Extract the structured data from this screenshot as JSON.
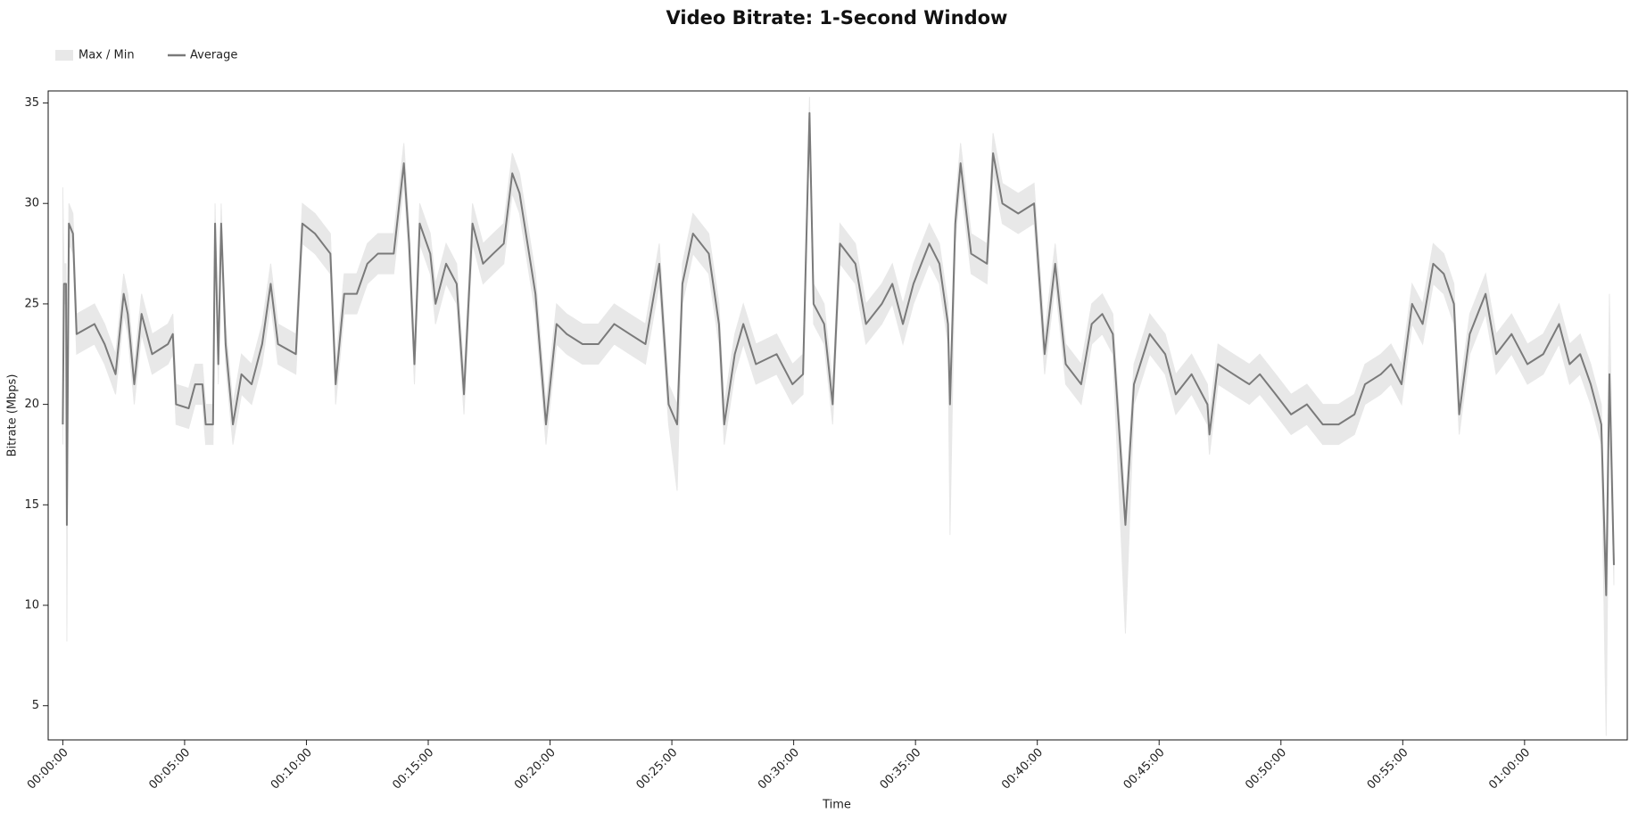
{
  "chart_data": {
    "type": "line",
    "title": "Video Bitrate: 1-Second Window",
    "x_label": "Time",
    "y_label": "Bitrate (Mbps)",
    "xlim": [
      -36,
      3853
    ],
    "ylim": [
      3.3,
      35.6
    ],
    "xticks": [
      {
        "value": 0,
        "label": "00:00:00"
      },
      {
        "value": 300,
        "label": "00:05:00"
      },
      {
        "value": 600,
        "label": "00:10:00"
      },
      {
        "value": 900,
        "label": "00:15:00"
      },
      {
        "value": 1200,
        "label": "00:20:00"
      },
      {
        "value": 1500,
        "label": "00:25:00"
      },
      {
        "value": 1800,
        "label": "00:30:00"
      },
      {
        "value": 2100,
        "label": "00:35:00"
      },
      {
        "value": 2400,
        "label": "00:40:00"
      },
      {
        "value": 2700,
        "label": "00:45:00"
      },
      {
        "value": 3000,
        "label": "00:50:00"
      },
      {
        "value": 3300,
        "label": "00:55:00"
      },
      {
        "value": 3600,
        "label": "01:00:00"
      }
    ],
    "yticks": [
      5,
      10,
      15,
      20,
      25,
      30,
      35
    ],
    "x": [
      0,
      3,
      8,
      10,
      15,
      25,
      34,
      78,
      103,
      130,
      150,
      160,
      176,
      194,
      220,
      259,
      271,
      279,
      310,
      326,
      344,
      352,
      370,
      375,
      383,
      390,
      401,
      419,
      440,
      465,
      491,
      512,
      530,
      574,
      590,
      621,
      659,
      672,
      693,
      724,
      750,
      776,
      815,
      840,
      853,
      866,
      879,
      905,
      918,
      944,
      970,
      988,
      1009,
      1035,
      1060,
      1086,
      1107,
      1125,
      1164,
      1190,
      1216,
      1241,
      1280,
      1319,
      1358,
      1396,
      1435,
      1469,
      1492,
      1513,
      1526,
      1552,
      1591,
      1616,
      1629,
      1655,
      1676,
      1707,
      1758,
      1797,
      1823,
      1839,
      1849,
      1875,
      1896,
      1914,
      1952,
      1978,
      2017,
      2043,
      2069,
      2095,
      2134,
      2159,
      2180,
      2185,
      2198,
      2211,
      2237,
      2276,
      2291,
      2314,
      2353,
      2392,
      2418,
      2444,
      2470,
      2508,
      2534,
      2560,
      2586,
      2617,
      2638,
      2677,
      2715,
      2741,
      2780,
      2819,
      2824,
      2845,
      2883,
      2922,
      2948,
      2987,
      3025,
      3064,
      3103,
      3142,
      3181,
      3207,
      3246,
      3271,
      3297,
      3323,
      3349,
      3375,
      3401,
      3426,
      3439,
      3465,
      3504,
      3530,
      3568,
      3607,
      3646,
      3685,
      3711,
      3737,
      3763,
      3789,
      3801,
      3809,
      3820
    ],
    "series": [
      {
        "name": "Max / Min",
        "color": "#e8e8e8",
        "upper": [
          30.8,
          27,
          27,
          15,
          30,
          29.5,
          24.5,
          25,
          24,
          22.5,
          26.5,
          25.5,
          22,
          25.5,
          23.5,
          24,
          24.5,
          21,
          20.8,
          22,
          22,
          20,
          20,
          30,
          23,
          30,
          24,
          20,
          22.5,
          22,
          24,
          27,
          24,
          23.5,
          30,
          29.5,
          28.5,
          22,
          26.5,
          26.5,
          28,
          28.5,
          28.5,
          33,
          29,
          23,
          30,
          28.5,
          26,
          28,
          27,
          21.5,
          30,
          28,
          28.5,
          29,
          32.5,
          31.5,
          26.5,
          20,
          25,
          24.5,
          24,
          24,
          25,
          24.5,
          24,
          28,
          21,
          20,
          27,
          29.5,
          28.5,
          25,
          20,
          23.5,
          25,
          23,
          23.5,
          22,
          22.5,
          35.3,
          26,
          25,
          21,
          29,
          28,
          25,
          26,
          27,
          25,
          27,
          29,
          28,
          25,
          21,
          30,
          33,
          28.5,
          28,
          33.5,
          31,
          30.5,
          31,
          23.5,
          28,
          23,
          22,
          25,
          25.5,
          24.5,
          15,
          22,
          24.5,
          23.5,
          21.5,
          22.5,
          21,
          19.5,
          23,
          22.5,
          22,
          22.5,
          21.5,
          20.5,
          21,
          20,
          20,
          20.5,
          22,
          22.5,
          23,
          22,
          26,
          25,
          28,
          27.5,
          26,
          20.5,
          24.5,
          26.5,
          23.5,
          24.5,
          23,
          23.5,
          25,
          23,
          23.5,
          22,
          20,
          11.5,
          25.5,
          13
        ],
        "lower": [
          18,
          25,
          25,
          8.2,
          28,
          27.5,
          22.5,
          23,
          22,
          20.5,
          24.5,
          23.5,
          20,
          23.5,
          21.5,
          22,
          22.5,
          19,
          18.8,
          20,
          20,
          18,
          18,
          28,
          21,
          28,
          22,
          18,
          20.5,
          20,
          22,
          25,
          22,
          21.5,
          28,
          27.5,
          26.5,
          20,
          24.5,
          24.5,
          26,
          26.5,
          26.5,
          31,
          27,
          21,
          28,
          26.5,
          24,
          26,
          25,
          19.5,
          28,
          26,
          26.5,
          27,
          30.5,
          29.5,
          24.5,
          18,
          23,
          22.5,
          22,
          22,
          23,
          22.5,
          22,
          26,
          19,
          15.7,
          25,
          27.5,
          26.5,
          23,
          18,
          21.5,
          23,
          21,
          21.5,
          20,
          20.5,
          33.5,
          24,
          23,
          19,
          27,
          26,
          23,
          24,
          25,
          23,
          25,
          27,
          26,
          23,
          13.5,
          28,
          31,
          26.5,
          26,
          31.5,
          29,
          28.5,
          29,
          21.5,
          26,
          21,
          20,
          23,
          23.5,
          22.5,
          8.6,
          20,
          22.5,
          21.5,
          19.5,
          20.5,
          19,
          17.5,
          21,
          20.5,
          20,
          20.5,
          19.5,
          18.5,
          19,
          18,
          18,
          18.5,
          20,
          20.5,
          21,
          20,
          24,
          23,
          26,
          25.5,
          24,
          18.5,
          22.5,
          24.5,
          21.5,
          22.5,
          21,
          21.5,
          23,
          21,
          21.5,
          20,
          18,
          3.5,
          20.5,
          11
        ]
      },
      {
        "name": "Average",
        "color": "#7a7a7a",
        "values": [
          19,
          26,
          26,
          14,
          29,
          28.5,
          23.5,
          24,
          23,
          21.5,
          25.5,
          24.5,
          21,
          24.5,
          22.5,
          23,
          23.5,
          20,
          19.8,
          21,
          21,
          19,
          19,
          29,
          22,
          29,
          23,
          19,
          21.5,
          21,
          23,
          26,
          23,
          22.5,
          29,
          28.5,
          27.5,
          21,
          25.5,
          25.5,
          27,
          27.5,
          27.5,
          32,
          28,
          22,
          29,
          27.5,
          25,
          27,
          26,
          20.5,
          29,
          27,
          27.5,
          28,
          31.5,
          30.5,
          25.5,
          19,
          24,
          23.5,
          23,
          23,
          24,
          23.5,
          23,
          27,
          20,
          19,
          26,
          28.5,
          27.5,
          24,
          19,
          22.5,
          24,
          22,
          22.5,
          21,
          21.5,
          34.5,
          25,
          24,
          20,
          28,
          27,
          24,
          25,
          26,
          24,
          26,
          28,
          27,
          24,
          20,
          29,
          32,
          27.5,
          27,
          32.5,
          30,
          29.5,
          30,
          22.5,
          27,
          22,
          21,
          24,
          24.5,
          23.5,
          14,
          21,
          23.5,
          22.5,
          20.5,
          21.5,
          20,
          18.5,
          22,
          21.5,
          21,
          21.5,
          20.5,
          19.5,
          20,
          19,
          19,
          19.5,
          21,
          21.5,
          22,
          21,
          25,
          24,
          27,
          26.5,
          25,
          19.5,
          23.5,
          25.5,
          22.5,
          23.5,
          22,
          22.5,
          24,
          22,
          22.5,
          21,
          19,
          10.5,
          21.5,
          12
        ]
      }
    ]
  }
}
